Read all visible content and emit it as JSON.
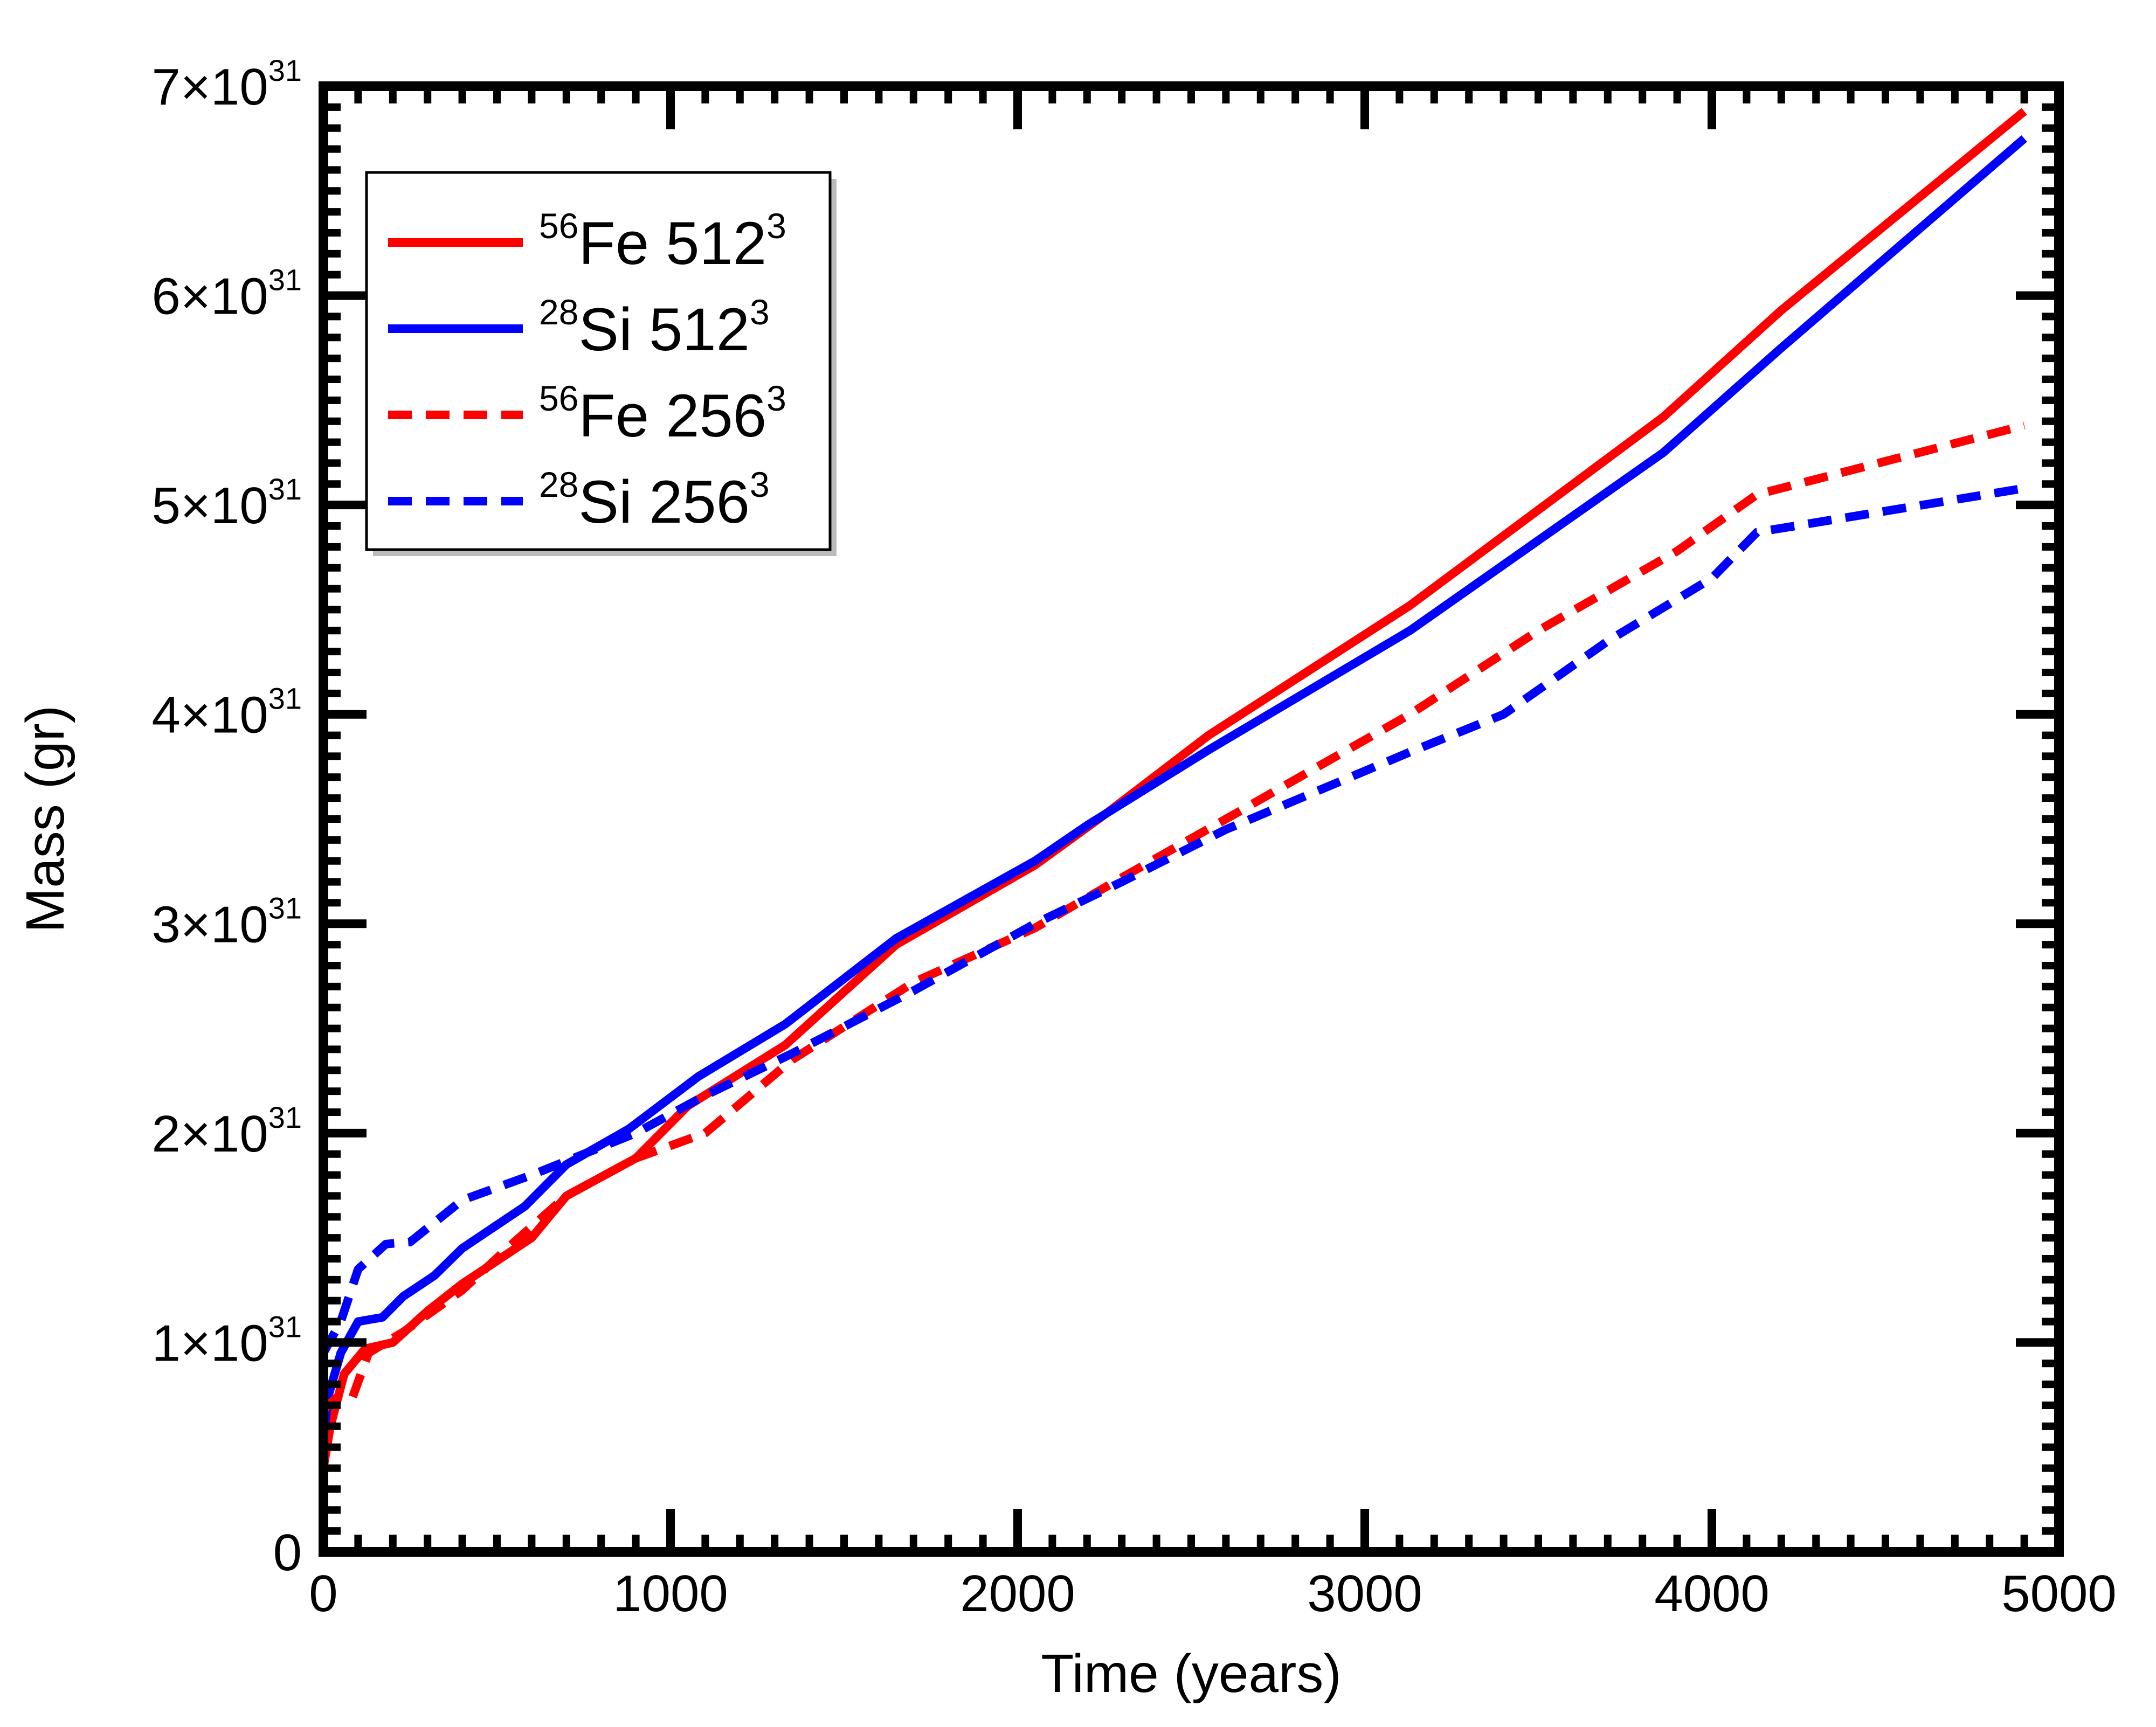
{
  "chart_data": {
    "type": "line",
    "xlabel": "Time (years)",
    "ylabel": "Mass (gr)",
    "xlim": [
      0,
      5000
    ],
    "ylim": [
      0,
      7e+31
    ],
    "x_ticks": [
      {
        "value": 0,
        "label": "0"
      },
      {
        "value": 1000,
        "label": "1000"
      },
      {
        "value": 2000,
        "label": "2000"
      },
      {
        "value": 3000,
        "label": "3000"
      },
      {
        "value": 4000,
        "label": "4000"
      },
      {
        "value": 5000,
        "label": "5000"
      }
    ],
    "y_ticks": [
      {
        "value": 0,
        "label": "0",
        "exponent": ""
      },
      {
        "value": 1e+31,
        "label": "1×10",
        "exponent": "31"
      },
      {
        "value": 2e+31,
        "label": "2×10",
        "exponent": "31"
      },
      {
        "value": 3e+31,
        "label": "3×10",
        "exponent": "31"
      },
      {
        "value": 4e+31,
        "label": "4×10",
        "exponent": "31"
      },
      {
        "value": 5e+31,
        "label": "5×10",
        "exponent": "31"
      },
      {
        "value": 6e+31,
        "label": "6×10",
        "exponent": "31"
      },
      {
        "value": 7e+31,
        "label": "7×10",
        "exponent": "31"
      }
    ],
    "legend_position": "top-left",
    "series": [
      {
        "name": "56Fe 512^3",
        "isotope_mass": "56",
        "element": "Fe",
        "resolution": "512",
        "power": "3",
        "color": "#ff0000",
        "dash": "solid",
        "points": [
          [
            0,
            4e+30
          ],
          [
            20,
            6e+30
          ],
          [
            60,
            8.5e+30
          ],
          [
            120,
            9.7e+30
          ],
          [
            200,
            1e+31
          ],
          [
            300,
            1.15e+31
          ],
          [
            400,
            1.28e+31
          ],
          [
            600,
            1.5e+31
          ],
          [
            700,
            1.7e+31
          ],
          [
            900,
            1.88e+31
          ],
          [
            1050,
            2.13e+31
          ],
          [
            1330,
            2.42e+31
          ],
          [
            1650,
            2.9e+31
          ],
          [
            2050,
            3.28e+31
          ],
          [
            2250,
            3.52e+31
          ],
          [
            2550,
            3.9e+31
          ],
          [
            3130,
            4.52e+31
          ],
          [
            3860,
            5.42e+31
          ],
          [
            4200,
            5.93e+31
          ],
          [
            4900,
            6.88e+31
          ]
        ]
      },
      {
        "name": "28Si 512^3",
        "isotope_mass": "28",
        "element": "Si",
        "resolution": "512",
        "power": "3",
        "color": "#0000ff",
        "dash": "solid",
        "points": [
          [
            0,
            5.5e+30
          ],
          [
            15,
            7.5e+30
          ],
          [
            50,
            9.5e+30
          ],
          [
            100,
            1.1e+31
          ],
          [
            170,
            1.12e+31
          ],
          [
            230,
            1.22e+31
          ],
          [
            320,
            1.32e+31
          ],
          [
            400,
            1.45e+31
          ],
          [
            580,
            1.65e+31
          ],
          [
            700,
            1.85e+31
          ],
          [
            880,
            2.02e+31
          ],
          [
            1080,
            2.27e+31
          ],
          [
            1330,
            2.52e+31
          ],
          [
            1650,
            2.93e+31
          ],
          [
            2050,
            3.3e+31
          ],
          [
            2200,
            3.47e+31
          ],
          [
            2550,
            3.83e+31
          ],
          [
            3130,
            4.4e+31
          ],
          [
            3860,
            5.25e+31
          ],
          [
            4200,
            5.75e+31
          ],
          [
            4900,
            6.75e+31
          ]
        ]
      },
      {
        "name": "56Fe 256^3",
        "isotope_mass": "56",
        "element": "Fe",
        "resolution": "256",
        "power": "3",
        "color": "#ff0000",
        "dash": "dashed",
        "points": [
          [
            0,
            6.8e+30
          ],
          [
            40,
            7.4e+30
          ],
          [
            80,
            7.2e+30
          ],
          [
            130,
            9.5e+30
          ],
          [
            230,
            1.05e+31
          ],
          [
            400,
            1.25e+31
          ],
          [
            550,
            1.48e+31
          ],
          [
            700,
            1.7e+31
          ],
          [
            900,
            1.88e+31
          ],
          [
            1100,
            2e+31
          ],
          [
            1350,
            2.35e+31
          ],
          [
            1700,
            2.72e+31
          ],
          [
            2050,
            2.98e+31
          ],
          [
            2300,
            3.22e+31
          ],
          [
            2600,
            3.5e+31
          ],
          [
            3130,
            4e+31
          ],
          [
            3500,
            4.4e+31
          ],
          [
            3900,
            4.78e+31
          ],
          [
            4130,
            5.05e+31
          ],
          [
            4900,
            5.38e+31
          ]
        ]
      },
      {
        "name": "28Si 256^3",
        "isotope_mass": "28",
        "element": "Si",
        "resolution": "256",
        "power": "3",
        "color": "#0000ff",
        "dash": "dashed",
        "points": [
          [
            0,
            9.5e+30
          ],
          [
            50,
            1.1e+31
          ],
          [
            100,
            1.35e+31
          ],
          [
            180,
            1.47e+31
          ],
          [
            250,
            1.48e+31
          ],
          [
            400,
            1.68e+31
          ],
          [
            600,
            1.8e+31
          ],
          [
            900,
            2e+31
          ],
          [
            1100,
            2.18e+31
          ],
          [
            1350,
            2.38e+31
          ],
          [
            1700,
            2.68e+31
          ],
          [
            2050,
            3e+31
          ],
          [
            2300,
            3.2e+31
          ],
          [
            2600,
            3.45e+31
          ],
          [
            3130,
            3.82e+31
          ],
          [
            3400,
            4e+31
          ],
          [
            3700,
            4.35e+31
          ],
          [
            4000,
            4.65e+31
          ],
          [
            4130,
            4.87e+31
          ],
          [
            4900,
            5.08e+31
          ]
        ]
      }
    ]
  }
}
